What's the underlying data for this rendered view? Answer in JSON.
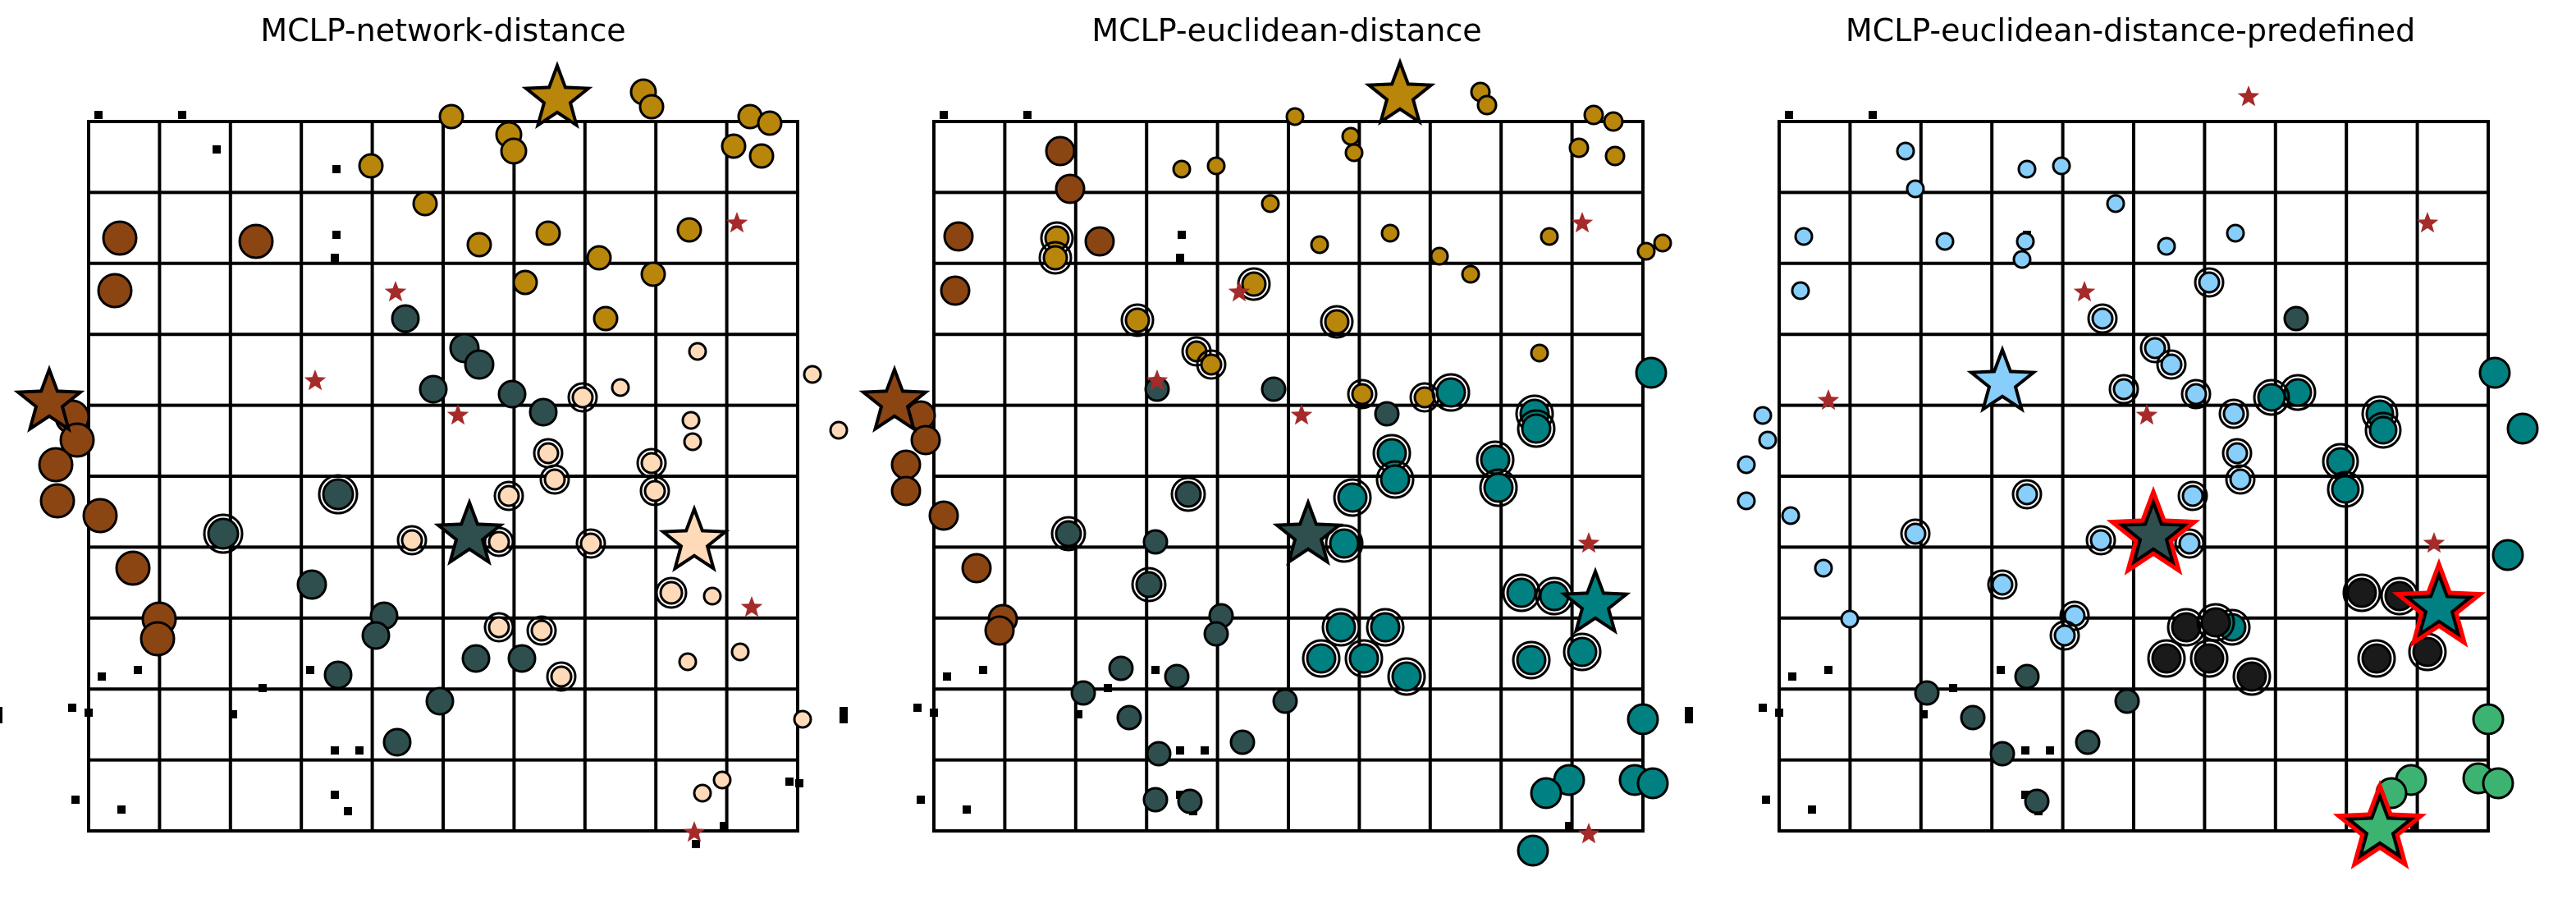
{
  "titles": [
    "MCLP-network-distance",
    "MCLP-euclidean-distance",
    "MCLP-euclidean-distance-predefined"
  ],
  "colors": {
    "grid": "#000000",
    "client_stroke": "#000000",
    "candidate_star": "#a52a2a",
    "orange_brown": "#8b4513",
    "goldenrod": "#b8860b",
    "dark_slate": "#2f4f4f",
    "peach": "#ffdab9",
    "teal": "#008080",
    "light_sky_blue": "#87cefa",
    "medium_sea_green": "#3cb371",
    "dark": "#1a1a1a",
    "selected_outline": "#ff0000"
  },
  "legend_text": []
}
